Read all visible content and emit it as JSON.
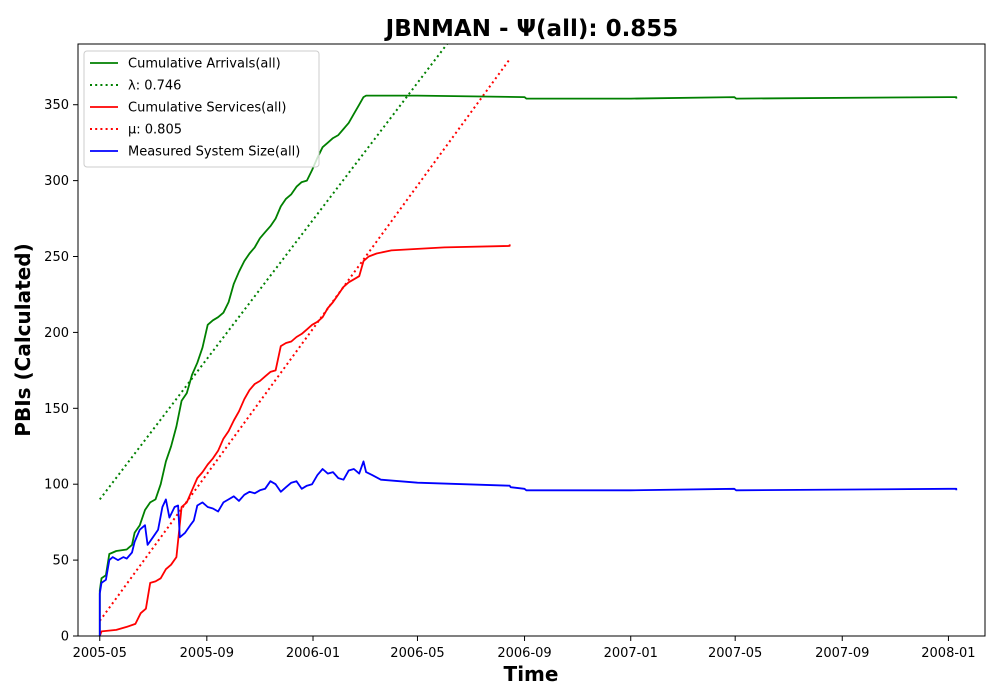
{
  "chart_data": {
    "type": "line",
    "title": "JBNMAN -  Ψ(all): 0.855",
    "xlabel": "Time",
    "ylabel": "PBIs (Calculated)",
    "xlim": [
      "2005-04-06",
      "2008-02-12"
    ],
    "ylim": [
      0,
      390
    ],
    "x_ticks": [
      "2005-05",
      "2005-09",
      "2006-01",
      "2006-05",
      "2006-09",
      "2007-01",
      "2007-05",
      "2007-09",
      "2008-01"
    ],
    "y_ticks": [
      0,
      50,
      100,
      150,
      200,
      250,
      300,
      350
    ],
    "grid": false,
    "legend_position": "top-left",
    "series": [
      {
        "name": "Cumulative Arrivals(all)",
        "style": "solid",
        "color": "#008000",
        "points": [
          [
            "2005-05-01",
            0
          ],
          [
            "2005-05-01",
            30
          ],
          [
            "2005-05-03",
            38
          ],
          [
            "2005-05-08",
            40
          ],
          [
            "2005-05-12",
            54
          ],
          [
            "2005-05-20",
            56
          ],
          [
            "2005-06-01",
            57
          ],
          [
            "2005-06-07",
            60
          ],
          [
            "2005-06-10",
            68
          ],
          [
            "2005-06-16",
            73
          ],
          [
            "2005-06-22",
            83
          ],
          [
            "2005-06-28",
            88
          ],
          [
            "2005-07-04",
            90
          ],
          [
            "2005-07-10",
            100
          ],
          [
            "2005-07-16",
            115
          ],
          [
            "2005-07-22",
            125
          ],
          [
            "2005-07-28",
            138
          ],
          [
            "2005-08-03",
            155
          ],
          [
            "2005-08-09",
            160
          ],
          [
            "2005-08-15",
            172
          ],
          [
            "2005-08-21",
            180
          ],
          [
            "2005-08-27",
            190
          ],
          [
            "2005-09-02",
            205
          ],
          [
            "2005-09-08",
            208
          ],
          [
            "2005-09-14",
            210
          ],
          [
            "2005-09-20",
            213
          ],
          [
            "2005-09-26",
            220
          ],
          [
            "2005-10-02",
            232
          ],
          [
            "2005-10-08",
            240
          ],
          [
            "2005-10-14",
            247
          ],
          [
            "2005-10-20",
            252
          ],
          [
            "2005-10-26",
            256
          ],
          [
            "2005-11-01",
            262
          ],
          [
            "2005-11-07",
            266
          ],
          [
            "2005-11-13",
            270
          ],
          [
            "2005-11-19",
            275
          ],
          [
            "2005-11-25",
            283
          ],
          [
            "2005-12-01",
            288
          ],
          [
            "2005-12-07",
            291
          ],
          [
            "2005-12-13",
            296
          ],
          [
            "2005-12-19",
            299
          ],
          [
            "2005-12-25",
            300
          ],
          [
            "2005-12-31",
            307
          ],
          [
            "2006-01-06",
            315
          ],
          [
            "2006-01-12",
            322
          ],
          [
            "2006-01-18",
            325
          ],
          [
            "2006-01-24",
            328
          ],
          [
            "2006-01-30",
            330
          ],
          [
            "2006-02-05",
            334
          ],
          [
            "2006-02-11",
            338
          ],
          [
            "2006-02-17",
            344
          ],
          [
            "2006-02-23",
            350
          ],
          [
            "2006-02-28",
            355
          ],
          [
            "2006-03-03",
            356
          ],
          [
            "2006-05-01",
            356
          ],
          [
            "2006-09-01",
            355
          ],
          [
            "2006-09-03",
            354
          ],
          [
            "2007-01-01",
            354
          ],
          [
            "2007-04-30",
            355
          ],
          [
            "2007-05-02",
            354
          ],
          [
            "2008-01-01",
            355
          ],
          [
            "2008-01-10",
            355
          ],
          [
            "2008-01-10",
            354
          ]
        ]
      },
      {
        "name": "λ: 0.746",
        "style": "dotted",
        "color": "#008000",
        "points": [
          [
            "2005-05-01",
            90
          ],
          [
            "2006-06-04",
            390
          ]
        ]
      },
      {
        "name": "Cumulative Services(all)",
        "style": "solid",
        "color": "#ff0000",
        "points": [
          [
            "2005-05-01",
            0
          ],
          [
            "2005-05-03",
            3
          ],
          [
            "2005-05-20",
            4
          ],
          [
            "2005-06-01",
            6
          ],
          [
            "2005-06-11",
            8
          ],
          [
            "2005-06-17",
            15
          ],
          [
            "2005-06-23",
            18
          ],
          [
            "2005-06-28",
            35
          ],
          [
            "2005-07-04",
            36
          ],
          [
            "2005-07-10",
            38
          ],
          [
            "2005-07-16",
            44
          ],
          [
            "2005-07-22",
            47
          ],
          [
            "2005-07-28",
            52
          ],
          [
            "2005-08-03",
            85
          ],
          [
            "2005-08-09",
            88
          ],
          [
            "2005-08-15",
            96
          ],
          [
            "2005-08-21",
            104
          ],
          [
            "2005-08-27",
            108
          ],
          [
            "2005-09-02",
            113
          ],
          [
            "2005-09-08",
            117
          ],
          [
            "2005-09-14",
            122
          ],
          [
            "2005-09-20",
            130
          ],
          [
            "2005-09-26",
            135
          ],
          [
            "2005-10-02",
            142
          ],
          [
            "2005-10-08",
            148
          ],
          [
            "2005-10-14",
            156
          ],
          [
            "2005-10-20",
            162
          ],
          [
            "2005-10-26",
            166
          ],
          [
            "2005-11-01",
            168
          ],
          [
            "2005-11-07",
            171
          ],
          [
            "2005-11-13",
            174
          ],
          [
            "2005-11-19",
            175
          ],
          [
            "2005-11-25",
            191
          ],
          [
            "2005-12-01",
            193
          ],
          [
            "2005-12-07",
            194
          ],
          [
            "2005-12-13",
            197
          ],
          [
            "2005-12-19",
            199
          ],
          [
            "2005-12-25",
            202
          ],
          [
            "2005-12-31",
            205
          ],
          [
            "2006-01-06",
            207
          ],
          [
            "2006-01-12",
            210
          ],
          [
            "2006-01-18",
            216
          ],
          [
            "2006-01-24",
            220
          ],
          [
            "2006-01-30",
            225
          ],
          [
            "2006-02-05",
            230
          ],
          [
            "2006-02-11",
            233
          ],
          [
            "2006-02-17",
            235
          ],
          [
            "2006-02-23",
            237
          ],
          [
            "2006-02-28",
            247
          ],
          [
            "2006-03-06",
            250
          ],
          [
            "2006-03-15",
            252
          ],
          [
            "2006-04-01",
            254
          ],
          [
            "2006-05-01",
            255
          ],
          [
            "2006-06-01",
            256
          ],
          [
            "2006-08-15",
            257
          ],
          [
            "2006-08-15",
            258
          ]
        ]
      },
      {
        "name": "μ: 0.805",
        "style": "dotted",
        "color": "#ff0000",
        "points": [
          [
            "2005-05-01",
            10
          ],
          [
            "2006-08-15",
            380
          ]
        ]
      },
      {
        "name": "Measured System Size(all)",
        "style": "solid",
        "color": "#0000ff",
        "points": [
          [
            "2005-05-01",
            0
          ],
          [
            "2005-05-01",
            28
          ],
          [
            "2005-05-03",
            35
          ],
          [
            "2005-05-08",
            37
          ],
          [
            "2005-05-12",
            50
          ],
          [
            "2005-05-16",
            52
          ],
          [
            "2005-05-22",
            50
          ],
          [
            "2005-05-28",
            52
          ],
          [
            "2005-06-01",
            51
          ],
          [
            "2005-06-07",
            55
          ],
          [
            "2005-06-10",
            62
          ],
          [
            "2005-06-16",
            70
          ],
          [
            "2005-06-22",
            73
          ],
          [
            "2005-06-25",
            60
          ],
          [
            "2005-07-01",
            65
          ],
          [
            "2005-07-07",
            70
          ],
          [
            "2005-07-12",
            85
          ],
          [
            "2005-07-16",
            90
          ],
          [
            "2005-07-20",
            78
          ],
          [
            "2005-07-26",
            85
          ],
          [
            "2005-07-30",
            86
          ],
          [
            "2005-08-01",
            65
          ],
          [
            "2005-08-07",
            68
          ],
          [
            "2005-08-13",
            73
          ],
          [
            "2005-08-17",
            76
          ],
          [
            "2005-08-21",
            86
          ],
          [
            "2005-08-27",
            88
          ],
          [
            "2005-09-02",
            85
          ],
          [
            "2005-09-08",
            84
          ],
          [
            "2005-09-14",
            82
          ],
          [
            "2005-09-20",
            88
          ],
          [
            "2005-09-26",
            90
          ],
          [
            "2005-10-02",
            92
          ],
          [
            "2005-10-08",
            89
          ],
          [
            "2005-10-14",
            93
          ],
          [
            "2005-10-20",
            95
          ],
          [
            "2005-10-26",
            94
          ],
          [
            "2005-11-01",
            96
          ],
          [
            "2005-11-07",
            97
          ],
          [
            "2005-11-13",
            102
          ],
          [
            "2005-11-19",
            100
          ],
          [
            "2005-11-25",
            95
          ],
          [
            "2005-12-01",
            98
          ],
          [
            "2005-12-07",
            101
          ],
          [
            "2005-12-13",
            102
          ],
          [
            "2005-12-19",
            97
          ],
          [
            "2005-12-25",
            99
          ],
          [
            "2005-12-31",
            100
          ],
          [
            "2006-01-06",
            106
          ],
          [
            "2006-01-12",
            110
          ],
          [
            "2006-01-18",
            107
          ],
          [
            "2006-01-24",
            108
          ],
          [
            "2006-01-30",
            104
          ],
          [
            "2006-02-05",
            103
          ],
          [
            "2006-02-11",
            109
          ],
          [
            "2006-02-17",
            110
          ],
          [
            "2006-02-23",
            107
          ],
          [
            "2006-02-28",
            115
          ],
          [
            "2006-03-03",
            108
          ],
          [
            "2006-03-10",
            106
          ],
          [
            "2006-03-20",
            103
          ],
          [
            "2006-05-01",
            101
          ],
          [
            "2006-08-15",
            99
          ],
          [
            "2006-08-16",
            98
          ],
          [
            "2006-09-01",
            97
          ],
          [
            "2006-09-03",
            96
          ],
          [
            "2007-01-01",
            96
          ],
          [
            "2007-04-30",
            97
          ],
          [
            "2007-05-02",
            96
          ],
          [
            "2008-01-01",
            97
          ],
          [
            "2008-01-10",
            97
          ],
          [
            "2008-01-10",
            96
          ]
        ]
      }
    ],
    "legend": [
      {
        "label": "Cumulative Arrivals(all)",
        "color": "#008000",
        "style": "solid"
      },
      {
        "label": "λ: 0.746",
        "color": "#008000",
        "style": "dotted"
      },
      {
        "label": "Cumulative Services(all)",
        "color": "#ff0000",
        "style": "solid"
      },
      {
        "label": "μ: 0.805",
        "color": "#ff0000",
        "style": "dotted"
      },
      {
        "label": "Measured System Size(all)",
        "color": "#0000ff",
        "style": "solid"
      }
    ]
  }
}
